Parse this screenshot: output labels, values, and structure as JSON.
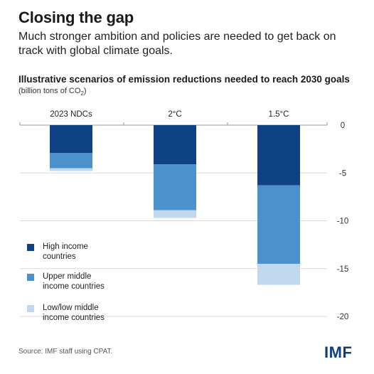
{
  "header": {
    "title": "Closing the gap",
    "subtitle": "Much stronger ambition and policies are needed to get back on track with global climate goals."
  },
  "chart_header": {
    "title": "Illustrative scenarios of emission reductions needed to reach 2030 goals",
    "unit_prefix": "(billion tons of CO",
    "unit_sub": "2",
    "unit_suffix": ")"
  },
  "footer": {
    "source": "Source: IMF staff using CPAT.",
    "logo": "IMF"
  },
  "colors": {
    "high_income": "#0f4185",
    "upper_middle": "#4b92cc",
    "low_middle": "#c1d9ee",
    "grid": "#d9d9d9",
    "axis_text": "#333333"
  },
  "chart_data": {
    "type": "bar",
    "stacked": true,
    "categories": [
      "2023 NDCs",
      "2°C",
      "1.5°C"
    ],
    "series": [
      {
        "name": "High income countries",
        "label": "High income\ncountries",
        "color_key": "high_income",
        "values": [
          -2.9,
          -4.1,
          -6.3
        ]
      },
      {
        "name": "Upper middle income countries",
        "label": "Upper middle\nincome countries",
        "color_key": "upper_middle",
        "values": [
          -1.6,
          -4.8,
          -8.2
        ]
      },
      {
        "name": "Low/low middle income countries",
        "label": "Low/low middle\nincome countries",
        "color_key": "low_middle",
        "values": [
          -0.3,
          -0.8,
          -2.2
        ]
      }
    ],
    "yticks": [
      0,
      -5,
      -10,
      -15,
      -20
    ],
    "ylim": [
      -20,
      0
    ],
    "grid": true,
    "legend_position": "bottom-left"
  }
}
